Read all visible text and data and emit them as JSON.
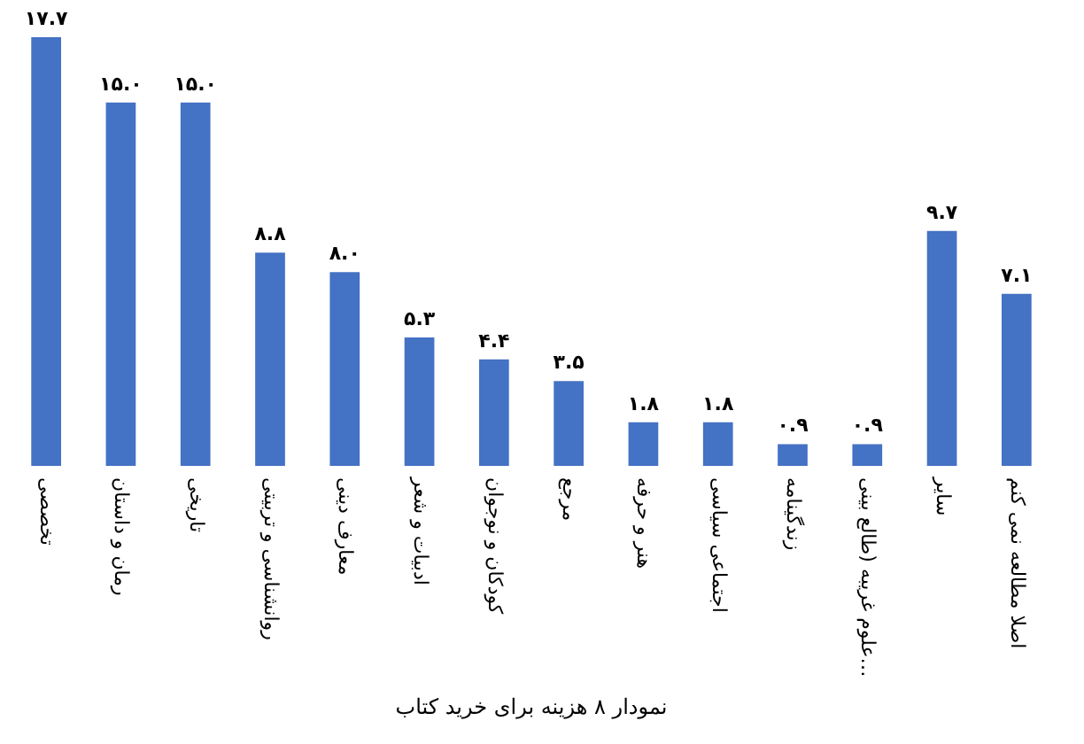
{
  "chart_data": {
    "type": "bar",
    "title": "نمودار ۸ هزینه برای خرید کتاب",
    "categories": [
      "تخصصی",
      "رمان و داستان",
      "تاریخی",
      "روانشناسی و تربیتی",
      "معارف دینی",
      "ادبیات و شعر",
      "کودکان و نوجوان",
      "مرجع",
      "هنر و حرفه",
      "اجتماعی سیاسی",
      "زندگینامه",
      "علوم غریبه (طالع بینی…",
      "سایر",
      "اصلا مطالعه نمی کنم"
    ],
    "values": [
      17.7,
      15.0,
      15.0,
      8.8,
      8.0,
      5.3,
      4.4,
      3.5,
      1.8,
      1.8,
      0.9,
      0.9,
      9.7,
      7.1
    ],
    "value_labels": [
      "۱۷.۷",
      "۱۵.۰",
      "۱۵.۰",
      "۸.۸",
      "۸.۰",
      "۵.۳",
      "۴.۴",
      "۳.۵",
      "۱.۸",
      "۱.۸",
      "۰.۹",
      "۰.۹",
      "۹.۷",
      "۷.۱"
    ],
    "color": "#4472c4",
    "tick_labels": "x",
    "grid": false
  }
}
